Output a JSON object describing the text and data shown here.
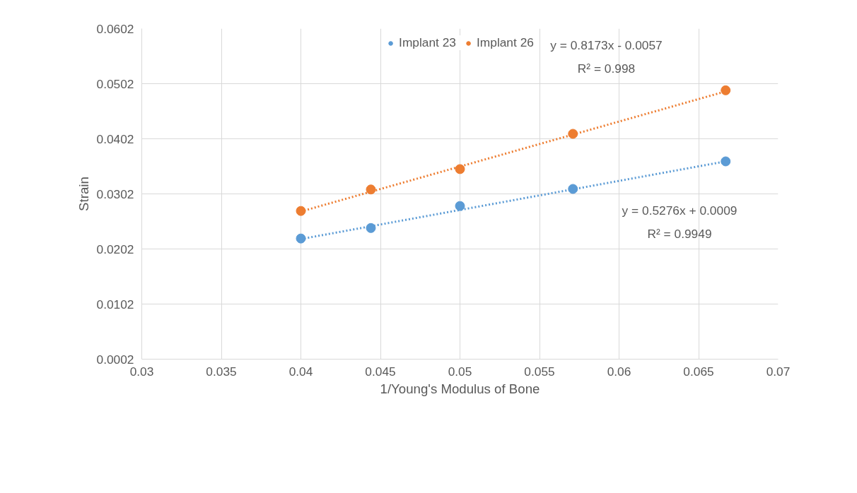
{
  "chart_data": {
    "type": "scatter",
    "xlabel": "1/Young's Modulus of Bone",
    "ylabel": "Strain",
    "xlim": [
      0.03,
      0.07
    ],
    "xticks": [
      0.03,
      0.035,
      0.04,
      0.045,
      0.05,
      0.055,
      0.06,
      0.065,
      0.07
    ],
    "ylim": [
      0.0002,
      0.0602
    ],
    "yticks": [
      0.0002,
      0.0102,
      0.0202,
      0.0302,
      0.0402,
      0.0502,
      0.0602
    ],
    "grid": true,
    "legend": "top",
    "marker": "circle",
    "series": [
      {
        "name": "Implant 23",
        "color": "#5b9bd5",
        "type": "scatter",
        "x": [
          0.04,
          0.0444,
          0.05,
          0.0571,
          0.0667
        ],
        "values": [
          0.0221,
          0.024,
          0.028,
          0.0311,
          0.0361
        ]
      },
      {
        "name": "Implant 26",
        "color": "#ed7d31",
        "type": "scatter",
        "x": [
          0.04,
          0.0444,
          0.05,
          0.0571,
          0.0667
        ],
        "values": [
          0.0271,
          0.031,
          0.0347,
          0.0411,
          0.049
        ]
      },
      {
        "color": "#5b9bd5",
        "type": "line",
        "marker": "none",
        "line_style": "dotted",
        "x": [
          0.04,
          0.0667
        ],
        "values": [
          0.022,
          0.0361
        ]
      },
      {
        "color": "#ed7d31",
        "type": "line",
        "marker": "none",
        "line_style": "dotted",
        "x": [
          0.04,
          0.0667
        ],
        "values": [
          0.027,
          0.0488
        ]
      }
    ],
    "annotations": [
      "y = 0.8173x - 0.0057",
      "R² = 0.998",
      "y = 0.5276x + 0.0009",
      "R² = 0.9949"
    ]
  }
}
